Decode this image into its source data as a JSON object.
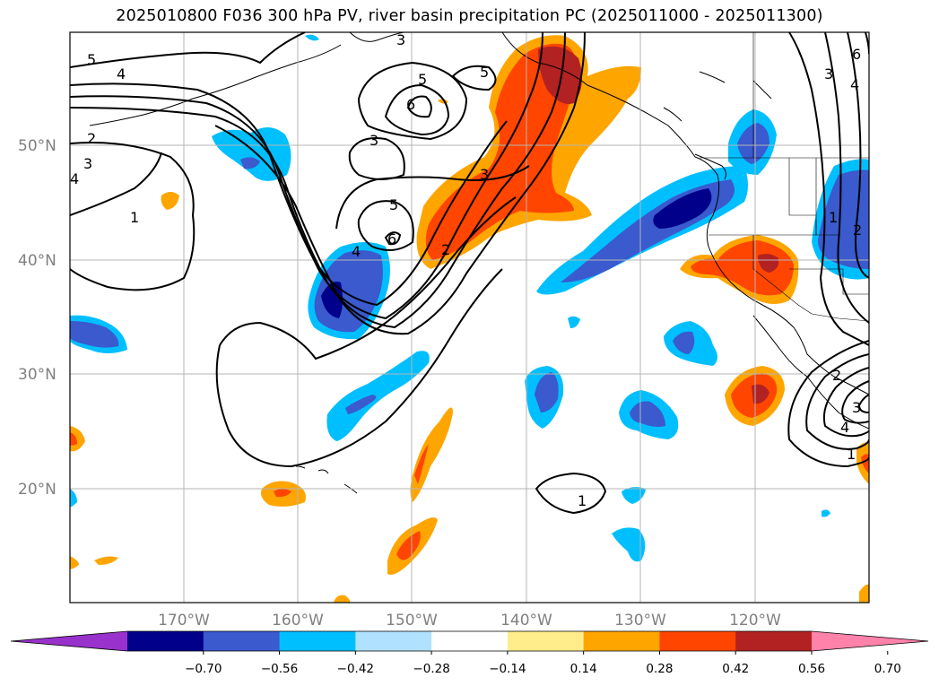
{
  "title": "2025010800 F036 300 hPa PV, river basin precipitation PC (2025011000 - 2025011300)",
  "axes": {
    "lat_labels": [
      "50°N",
      "40°N",
      "30°N",
      "20°N"
    ],
    "lon_labels": [
      "170°W",
      "160°W",
      "150°W",
      "140°W",
      "130°W",
      "120°W"
    ]
  },
  "contour_labels": [
    "5",
    "4",
    "3",
    "5",
    "5",
    "6",
    "3",
    "2",
    "3",
    "1",
    "5",
    "6",
    "3",
    "4",
    "2",
    "1",
    "1",
    "2",
    "4",
    "3",
    "4",
    "2",
    "1",
    "6",
    "3",
    "4"
  ],
  "colorbar": {
    "ticks": [
      "−0.70",
      "−0.56",
      "−0.42",
      "−0.28",
      "−0.14",
      "0.14",
      "0.28",
      "0.42",
      "0.56",
      "0.70"
    ],
    "colors": [
      "#9932cc",
      "#00008b",
      "#3a5acd",
      "#00bfff",
      "#b0e2ff",
      "#ffffff",
      "#ffec8b",
      "#ffa500",
      "#ff4500",
      "#b22222",
      "#ff82ab"
    ]
  },
  "chart_data": {
    "type": "map",
    "title": "2025010800 F036 300 hPa PV, river basin precipitation PC (2025011000 - 2025011300)",
    "fields": [
      "300 hPa PV (contours)",
      "river basin precipitation PC (filled)"
    ],
    "lon_range": [
      -180,
      -110
    ],
    "lat_range": [
      10,
      60
    ],
    "contour_levels": [
      1,
      2,
      3,
      4,
      5,
      6
    ],
    "fill_levels": [
      -0.7,
      -0.56,
      -0.42,
      -0.28,
      -0.14,
      0.14,
      0.28,
      0.42,
      0.56,
      0.7
    ]
  }
}
